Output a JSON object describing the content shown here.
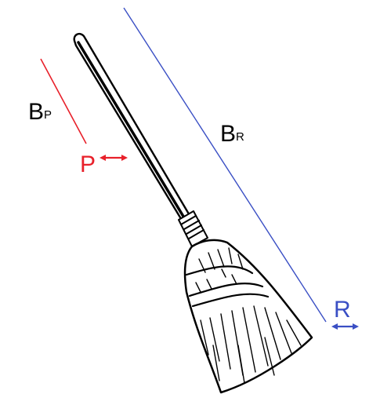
{
  "labels": {
    "bp_main": "B",
    "bp_sub": "P",
    "br_main": "B",
    "br_sub": "R",
    "p": "P",
    "r": "R"
  },
  "colors": {
    "ink": "#000000",
    "red": "#e8202a",
    "blue": "#3a4fc4",
    "bristle_fill": "#ffffff"
  },
  "icons": {
    "p_arrow": "double-headed-horizontal-arrow",
    "r_arrow": "double-headed-horizontal-arrow"
  }
}
